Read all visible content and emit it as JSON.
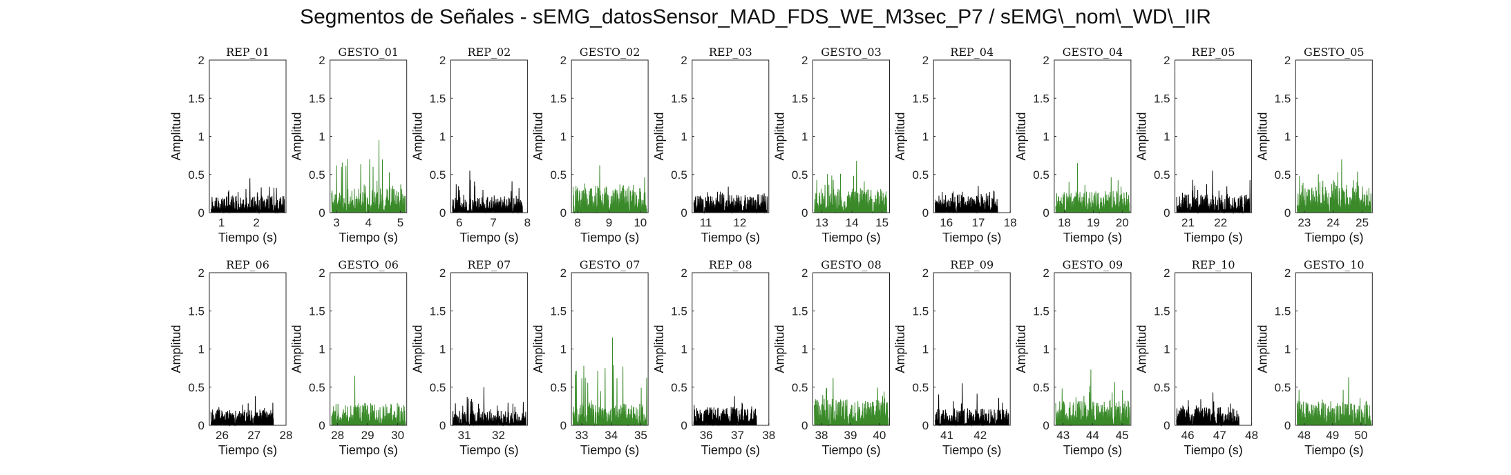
{
  "title": "Segmentos de Señales - sEMG_datosSensor_MAD_FDS_WE_M3sec_P7 / sEMG\\_nom\\_WD\\_IIR",
  "colors": {
    "rep": "#000000",
    "gesto": "#3a8a2a",
    "axis": "#262626",
    "background": "#ffffff"
  },
  "chart_data": [
    {
      "type": "line",
      "title": "REP_01",
      "xlabel": "Tiempo (s)",
      "ylabel": "Amplitud",
      "xlim": [
        0.65,
        2.85
      ],
      "ylim": [
        0,
        2
      ],
      "xticks": [
        1,
        2
      ],
      "yticks": [
        0,
        0.5,
        1,
        1.5,
        2
      ],
      "grid": false,
      "color": "rep",
      "x_range": [
        0.7,
        2.8
      ],
      "peak": 0.45,
      "base": 0.14,
      "seed": 1
    },
    {
      "type": "line",
      "title": "GESTO_01",
      "xlabel": "Tiempo (s)",
      "ylabel": "Amplitud",
      "xlim": [
        2.8,
        5.2
      ],
      "ylim": [
        0,
        2
      ],
      "xticks": [
        3,
        4,
        5
      ],
      "yticks": [
        0,
        0.5,
        1,
        1.5,
        2
      ],
      "grid": false,
      "color": "gesto",
      "x_range": [
        2.85,
        5.15
      ],
      "peak": 0.95,
      "base": 0.2,
      "seed": 2
    },
    {
      "type": "line",
      "title": "REP_02",
      "xlabel": "Tiempo (s)",
      "ylabel": "Amplitud",
      "xlim": [
        5.75,
        8.0
      ],
      "ylim": [
        0,
        2
      ],
      "xticks": [
        6,
        7,
        8
      ],
      "yticks": [
        0,
        0.5,
        1,
        1.5,
        2
      ],
      "grid": false,
      "color": "rep",
      "x_range": [
        5.8,
        7.85
      ],
      "peak": 0.55,
      "base": 0.14,
      "seed": 3
    },
    {
      "type": "line",
      "title": "GESTO_02",
      "xlabel": "Tiempo (s)",
      "ylabel": "Amplitud",
      "xlim": [
        7.8,
        10.25
      ],
      "ylim": [
        0,
        2
      ],
      "xticks": [
        8,
        9,
        10
      ],
      "yticks": [
        0,
        0.5,
        1,
        1.5,
        2
      ],
      "grid": false,
      "color": "gesto",
      "x_range": [
        7.85,
        10.2
      ],
      "peak": 0.62,
      "base": 0.22,
      "seed": 4
    },
    {
      "type": "line",
      "title": "REP_03",
      "xlabel": "Tiempo (s)",
      "ylabel": "Amplitud",
      "xlim": [
        10.6,
        12.85
      ],
      "ylim": [
        0,
        2
      ],
      "xticks": [
        11,
        12
      ],
      "yticks": [
        0,
        0.5,
        1,
        1.5,
        2
      ],
      "grid": false,
      "color": "rep",
      "x_range": [
        10.65,
        12.8
      ],
      "peak": 0.34,
      "base": 0.15,
      "seed": 5
    },
    {
      "type": "line",
      "title": "GESTO_03",
      "xlabel": "Tiempo (s)",
      "ylabel": "Amplitud",
      "xlim": [
        12.7,
        15.25
      ],
      "ylim": [
        0,
        2
      ],
      "xticks": [
        13,
        14,
        15
      ],
      "yticks": [
        0,
        0.5,
        1,
        1.5,
        2
      ],
      "grid": false,
      "color": "gesto",
      "x_range": [
        12.75,
        15.15
      ],
      "peak": 0.68,
      "base": 0.2,
      "seed": 6
    },
    {
      "type": "line",
      "title": "REP_04",
      "xlabel": "Tiempo (s)",
      "ylabel": "Amplitud",
      "xlim": [
        15.6,
        18.0
      ],
      "ylim": [
        0,
        2
      ],
      "xticks": [
        16,
        17,
        18
      ],
      "yticks": [
        0,
        0.5,
        1,
        1.5,
        2
      ],
      "grid": false,
      "color": "rep",
      "x_range": [
        15.65,
        17.6
      ],
      "peak": 0.35,
      "base": 0.15,
      "seed": 7
    },
    {
      "type": "line",
      "title": "GESTO_04",
      "xlabel": "Tiempo (s)",
      "ylabel": "Amplitud",
      "xlim": [
        17.65,
        20.3
      ],
      "ylim": [
        0,
        2
      ],
      "xticks": [
        18,
        19,
        20
      ],
      "yticks": [
        0,
        0.5,
        1,
        1.5,
        2
      ],
      "grid": false,
      "color": "gesto",
      "x_range": [
        17.7,
        20.25
      ],
      "peak": 0.65,
      "base": 0.18,
      "seed": 8
    },
    {
      "type": "line",
      "title": "REP_05",
      "xlabel": "Tiempo (s)",
      "ylabel": "Amplitud",
      "xlim": [
        20.6,
        22.95
      ],
      "ylim": [
        0,
        2
      ],
      "xticks": [
        21,
        22
      ],
      "yticks": [
        0,
        0.5,
        1,
        1.5,
        2
      ],
      "grid": false,
      "color": "rep",
      "x_range": [
        20.65,
        22.9
      ],
      "peak": 0.55,
      "base": 0.15,
      "seed": 9
    },
    {
      "type": "line",
      "title": "GESTO_05",
      "xlabel": "Tiempo (s)",
      "ylabel": "Amplitud",
      "xlim": [
        22.7,
        25.35
      ],
      "ylim": [
        0,
        2
      ],
      "xticks": [
        23,
        24,
        25
      ],
      "yticks": [
        0,
        0.5,
        1,
        1.5,
        2
      ],
      "grid": false,
      "color": "gesto",
      "x_range": [
        22.75,
        25.3
      ],
      "peak": 0.7,
      "base": 0.22,
      "seed": 10
    },
    {
      "type": "line",
      "title": "REP_06",
      "xlabel": "Tiempo (s)",
      "ylabel": "Amplitud",
      "xlim": [
        25.6,
        28.0
      ],
      "ylim": [
        0,
        2
      ],
      "xticks": [
        26,
        27,
        28
      ],
      "yticks": [
        0,
        0.5,
        1,
        1.5,
        2
      ],
      "grid": false,
      "color": "rep",
      "x_range": [
        25.65,
        27.6
      ],
      "peak": 0.38,
      "base": 0.13,
      "seed": 11
    },
    {
      "type": "line",
      "title": "GESTO_06",
      "xlabel": "Tiempo (s)",
      "ylabel": "Amplitud",
      "xlim": [
        27.75,
        30.3
      ],
      "ylim": [
        0,
        2
      ],
      "xticks": [
        28,
        29,
        30
      ],
      "yticks": [
        0,
        0.5,
        1,
        1.5,
        2
      ],
      "grid": false,
      "color": "gesto",
      "x_range": [
        27.8,
        30.25
      ],
      "peak": 0.65,
      "base": 0.18,
      "seed": 12
    },
    {
      "type": "line",
      "title": "REP_07",
      "xlabel": "Tiempo (s)",
      "ylabel": "Amplitud",
      "xlim": [
        30.6,
        32.85
      ],
      "ylim": [
        0,
        2
      ],
      "xticks": [
        31,
        32
      ],
      "yticks": [
        0,
        0.5,
        1,
        1.5,
        2
      ],
      "grid": false,
      "color": "rep",
      "x_range": [
        30.65,
        32.8
      ],
      "peak": 0.5,
      "base": 0.12,
      "seed": 13
    },
    {
      "type": "line",
      "title": "GESTO_07",
      "xlabel": "Tiempo (s)",
      "ylabel": "Amplitud",
      "xlim": [
        32.65,
        35.25
      ],
      "ylim": [
        0,
        2
      ],
      "xticks": [
        33,
        34,
        35
      ],
      "yticks": [
        0,
        0.5,
        1,
        1.5,
        2
      ],
      "grid": false,
      "color": "gesto",
      "x_range": [
        32.7,
        35.2
      ],
      "peak": 1.15,
      "base": 0.18,
      "seed": 14
    },
    {
      "type": "line",
      "title": "REP_08",
      "xlabel": "Tiempo (s)",
      "ylabel": "Amplitud",
      "xlim": [
        35.55,
        38.0
      ],
      "ylim": [
        0,
        2
      ],
      "xticks": [
        36,
        37,
        38
      ],
      "yticks": [
        0,
        0.5,
        1,
        1.5,
        2
      ],
      "grid": false,
      "color": "rep",
      "x_range": [
        35.6,
        37.6
      ],
      "peak": 0.38,
      "base": 0.15,
      "seed": 15
    },
    {
      "type": "line",
      "title": "GESTO_08",
      "xlabel": "Tiempo (s)",
      "ylabel": "Amplitud",
      "xlim": [
        37.7,
        40.35
      ],
      "ylim": [
        0,
        2
      ],
      "xticks": [
        38,
        39,
        40
      ],
      "yticks": [
        0,
        0.5,
        1,
        1.5,
        2
      ],
      "grid": false,
      "color": "gesto",
      "x_range": [
        37.75,
        40.3
      ],
      "peak": 0.62,
      "base": 0.22,
      "seed": 16
    },
    {
      "type": "line",
      "title": "REP_09",
      "xlabel": "Tiempo (s)",
      "ylabel": "Amplitud",
      "xlim": [
        40.6,
        42.9
      ],
      "ylim": [
        0,
        2
      ],
      "xticks": [
        41,
        42
      ],
      "yticks": [
        0,
        0.5,
        1,
        1.5,
        2
      ],
      "grid": false,
      "color": "rep",
      "x_range": [
        40.65,
        42.85
      ],
      "peak": 0.55,
      "base": 0.14,
      "seed": 17
    },
    {
      "type": "line",
      "title": "GESTO_09",
      "xlabel": "Tiempo (s)",
      "ylabel": "Amplitud",
      "xlim": [
        42.7,
        45.3
      ],
      "ylim": [
        0,
        2
      ],
      "xticks": [
        43,
        44,
        45
      ],
      "yticks": [
        0,
        0.5,
        1,
        1.5,
        2
      ],
      "grid": false,
      "color": "gesto",
      "x_range": [
        42.75,
        45.25
      ],
      "peak": 0.73,
      "base": 0.2,
      "seed": 18
    },
    {
      "type": "line",
      "title": "REP_10",
      "xlabel": "Tiempo (s)",
      "ylabel": "Amplitud",
      "xlim": [
        45.6,
        48.0
      ],
      "ylim": [
        0,
        2
      ],
      "xticks": [
        46,
        47,
        48
      ],
      "yticks": [
        0,
        0.5,
        1,
        1.5,
        2
      ],
      "grid": false,
      "color": "rep",
      "x_range": [
        45.65,
        47.6
      ],
      "peak": 0.43,
      "base": 0.15,
      "seed": 19
    },
    {
      "type": "line",
      "title": "GESTO_10",
      "xlabel": "Tiempo (s)",
      "ylabel": "Amplitud",
      "xlim": [
        47.7,
        50.4
      ],
      "ylim": [
        0,
        2
      ],
      "xticks": [
        48,
        49,
        50
      ],
      "yticks": [
        0,
        0.5,
        1,
        1.5,
        2
      ],
      "grid": false,
      "color": "gesto",
      "x_range": [
        47.75,
        50.35
      ],
      "peak": 0.63,
      "base": 0.2,
      "seed": 20
    }
  ]
}
